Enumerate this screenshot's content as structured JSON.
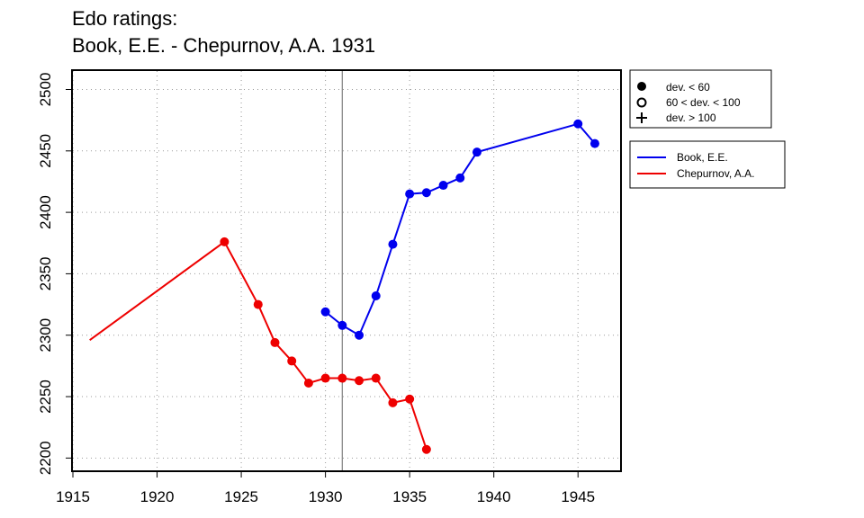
{
  "chart_data": {
    "type": "line",
    "title": [
      "Edo ratings:",
      "Book, E.E. - Chepurnov, A.A. 1931"
    ],
    "xlabel": "",
    "ylabel": "",
    "xlim": [
      1915,
      1947.5
    ],
    "ylim": [
      2190,
      2515
    ],
    "x_ticks": [
      1915,
      1920,
      1925,
      1930,
      1935,
      1940,
      1945
    ],
    "y_ticks": [
      2200,
      2250,
      2300,
      2350,
      2400,
      2450,
      2500
    ],
    "grid": true,
    "reference_line_x": 1931,
    "reference_line_color": "#888888",
    "legend_placement": "outside-right",
    "marker_legend": [
      "dev. < 60",
      "60 < dev. < 100",
      "dev. > 100"
    ],
    "series": [
      {
        "name": "Book, E.E.",
        "color": "#0000ee",
        "points": [
          {
            "x": 1930,
            "y": 2319,
            "marker": true
          },
          {
            "x": 1931,
            "y": 2308,
            "marker": true
          },
          {
            "x": 1932,
            "y": 2300,
            "marker": true
          },
          {
            "x": 1933,
            "y": 2332,
            "marker": true
          },
          {
            "x": 1934,
            "y": 2374,
            "marker": true
          },
          {
            "x": 1935,
            "y": 2415,
            "marker": true
          },
          {
            "x": 1936,
            "y": 2416,
            "marker": true
          },
          {
            "x": 1937,
            "y": 2422,
            "marker": true
          },
          {
            "x": 1938,
            "y": 2428,
            "marker": true
          },
          {
            "x": 1939,
            "y": 2449,
            "marker": true
          },
          {
            "x": 1945,
            "y": 2472,
            "marker": true
          },
          {
            "x": 1946,
            "y": 2456,
            "marker": true
          }
        ]
      },
      {
        "name": "Chepurnov, A.A.",
        "color": "#ee0000",
        "points": [
          {
            "x": 1916,
            "y": 2296,
            "marker": false
          },
          {
            "x": 1924,
            "y": 2376,
            "marker": true
          },
          {
            "x": 1926,
            "y": 2325,
            "marker": true
          },
          {
            "x": 1927,
            "y": 2294,
            "marker": true
          },
          {
            "x": 1928,
            "y": 2279,
            "marker": true
          },
          {
            "x": 1929,
            "y": 2261,
            "marker": true
          },
          {
            "x": 1930,
            "y": 2265,
            "marker": true
          },
          {
            "x": 1931,
            "y": 2265,
            "marker": true
          },
          {
            "x": 1932,
            "y": 2263,
            "marker": true
          },
          {
            "x": 1933,
            "y": 2265,
            "marker": true
          },
          {
            "x": 1934,
            "y": 2245,
            "marker": true
          },
          {
            "x": 1935,
            "y": 2248,
            "marker": true
          },
          {
            "x": 1936,
            "y": 2207,
            "marker": true
          }
        ]
      }
    ]
  }
}
